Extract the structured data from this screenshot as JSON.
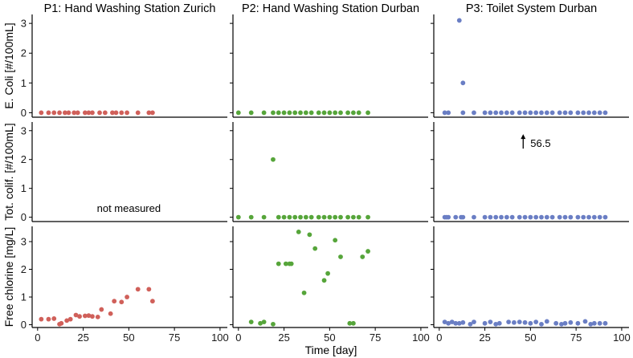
{
  "chart_data": {
    "type": "scatter",
    "columns": [
      {
        "title": "P1: Hand Washing Station Zurich",
        "color": "#d0605a"
      },
      {
        "title": "P2: Hand Washing Station Durban",
        "color": "#56a53a"
      },
      {
        "title": "P3: Toilet System Durban",
        "color": "#6a7ec4"
      }
    ],
    "rows": [
      {
        "ylabel": "E. Coli [#/100mL]",
        "ylim": [
          -0.15,
          3.3
        ],
        "yticks": [
          0,
          1,
          2,
          3
        ]
      },
      {
        "ylabel": "Tot. colif. [#/100mL]",
        "ylim": [
          -0.15,
          3.3
        ],
        "yticks": [
          0,
          1,
          2,
          3
        ]
      },
      {
        "ylabel": "Free chlorine [mg/L]",
        "ylim": [
          -0.1,
          3.55
        ],
        "yticks": [
          0,
          1,
          2,
          3
        ]
      }
    ],
    "xlabel": "Time [day]",
    "xlim": [
      -3,
      104
    ],
    "xticks": [
      0,
      25,
      50,
      75,
      100
    ],
    "panels": [
      {
        "row": 0,
        "col": 0,
        "points": [
          [
            2,
            0
          ],
          [
            6,
            0
          ],
          [
            9,
            0
          ],
          [
            12,
            0
          ],
          [
            15,
            0
          ],
          [
            17,
            0
          ],
          [
            20,
            0
          ],
          [
            22,
            0
          ],
          [
            26,
            0
          ],
          [
            28,
            0
          ],
          [
            30,
            0
          ],
          [
            34,
            0
          ],
          [
            37,
            0
          ],
          [
            41,
            0
          ],
          [
            43,
            0
          ],
          [
            46,
            0
          ],
          [
            49,
            0
          ],
          [
            55,
            0
          ],
          [
            61,
            0
          ],
          [
            63,
            0
          ]
        ]
      },
      {
        "row": 0,
        "col": 1,
        "points": [
          [
            0,
            0
          ],
          [
            7,
            0
          ],
          [
            14,
            0
          ],
          [
            19,
            0
          ],
          [
            22,
            0
          ],
          [
            25,
            0
          ],
          [
            28,
            0
          ],
          [
            31,
            0
          ],
          [
            34,
            0
          ],
          [
            37,
            0
          ],
          [
            40,
            0
          ],
          [
            44,
            0
          ],
          [
            47,
            0
          ],
          [
            50,
            0
          ],
          [
            53,
            0
          ],
          [
            56,
            0
          ],
          [
            60,
            0
          ],
          [
            63,
            0
          ],
          [
            66,
            0
          ],
          [
            71,
            0
          ]
        ]
      },
      {
        "row": 0,
        "col": 2,
        "points": [
          [
            3,
            0
          ],
          [
            5,
            0
          ],
          [
            11,
            3.1
          ],
          [
            13,
            1
          ],
          [
            13,
            0
          ],
          [
            19,
            0
          ],
          [
            25,
            0
          ],
          [
            28,
            0
          ],
          [
            31,
            0
          ],
          [
            34,
            0
          ],
          [
            37,
            0
          ],
          [
            40,
            0
          ],
          [
            44,
            0
          ],
          [
            47,
            0
          ],
          [
            50,
            0
          ],
          [
            53,
            0
          ],
          [
            56,
            0
          ],
          [
            59,
            0
          ],
          [
            62,
            0
          ],
          [
            66,
            0
          ],
          [
            69,
            0
          ],
          [
            72,
            0
          ],
          [
            76,
            0
          ],
          [
            79,
            0
          ],
          [
            82,
            0
          ],
          [
            85,
            0
          ],
          [
            88,
            0
          ],
          [
            91,
            0
          ]
        ]
      },
      {
        "row": 1,
        "col": 0,
        "points": []
      },
      {
        "row": 1,
        "col": 1,
        "points": [
          [
            0,
            0
          ],
          [
            7,
            0
          ],
          [
            14,
            0
          ],
          [
            19,
            2
          ],
          [
            22,
            0
          ],
          [
            25,
            0
          ],
          [
            28,
            0
          ],
          [
            31,
            0
          ],
          [
            34,
            0
          ],
          [
            37,
            0
          ],
          [
            40,
            0
          ],
          [
            44,
            0
          ],
          [
            47,
            0
          ],
          [
            50,
            0
          ],
          [
            53,
            0
          ],
          [
            56,
            0
          ],
          [
            60,
            0
          ],
          [
            63,
            0
          ],
          [
            66,
            0
          ],
          [
            71,
            0
          ]
        ]
      },
      {
        "row": 1,
        "col": 2,
        "points": [
          [
            3,
            0
          ],
          [
            4,
            0
          ],
          [
            5,
            0
          ],
          [
            9,
            0
          ],
          [
            12,
            0
          ],
          [
            13,
            0
          ],
          [
            19,
            0
          ],
          [
            25,
            0
          ],
          [
            28,
            0
          ],
          [
            31,
            0
          ],
          [
            34,
            0
          ],
          [
            37,
            0
          ],
          [
            40,
            0
          ],
          [
            44,
            0
          ],
          [
            47,
            0
          ],
          [
            50,
            0
          ],
          [
            53,
            0
          ],
          [
            56,
            0
          ],
          [
            59,
            0
          ],
          [
            62,
            0
          ],
          [
            66,
            0
          ],
          [
            69,
            0
          ],
          [
            72,
            0
          ],
          [
            76,
            0
          ],
          [
            79,
            0
          ],
          [
            82,
            0
          ],
          [
            85,
            0
          ],
          [
            88,
            0
          ],
          [
            91,
            0
          ]
        ]
      },
      {
        "row": 2,
        "col": 0,
        "points": [
          [
            2,
            0.2
          ],
          [
            6,
            0.2
          ],
          [
            9,
            0.22
          ],
          [
            12,
            0.02
          ],
          [
            13,
            0.05
          ],
          [
            16,
            0.15
          ],
          [
            18,
            0.2
          ],
          [
            21,
            0.35
          ],
          [
            23,
            0.3
          ],
          [
            26,
            0.32
          ],
          [
            28,
            0.33
          ],
          [
            30,
            0.3
          ],
          [
            33,
            0.28
          ],
          [
            35,
            0.55
          ],
          [
            40,
            0.4
          ],
          [
            42,
            0.85
          ],
          [
            46,
            0.82
          ],
          [
            49,
            1
          ],
          [
            55,
            1.28
          ],
          [
            61,
            1.28
          ],
          [
            63,
            0.85
          ]
        ]
      },
      {
        "row": 2,
        "col": 1,
        "points": [
          [
            7,
            0.1
          ],
          [
            12,
            0.05
          ],
          [
            14,
            0.1
          ],
          [
            19,
            0.02
          ],
          [
            22,
            2.2
          ],
          [
            26,
            2.2
          ],
          [
            28,
            2.2
          ],
          [
            29,
            2.2
          ],
          [
            33,
            3.35
          ],
          [
            36,
            1.15
          ],
          [
            39,
            3.25
          ],
          [
            42,
            2.75
          ],
          [
            47,
            1.6
          ],
          [
            49,
            1.85
          ],
          [
            53,
            3.05
          ],
          [
            56,
            2.45
          ],
          [
            61,
            0.05
          ],
          [
            63,
            0.05
          ],
          [
            68,
            2.45
          ],
          [
            71,
            2.65
          ]
        ]
      },
      {
        "row": 2,
        "col": 2,
        "points": [
          [
            3,
            0.1
          ],
          [
            5,
            0.05
          ],
          [
            7,
            0.1
          ],
          [
            9,
            0.05
          ],
          [
            11,
            0.05
          ],
          [
            13,
            0.08
          ],
          [
            17,
            0.02
          ],
          [
            19,
            0.1
          ],
          [
            25,
            0.05
          ],
          [
            28,
            0.1
          ],
          [
            31,
            0.02
          ],
          [
            33,
            0.05
          ],
          [
            38,
            0.1
          ],
          [
            41,
            0.08
          ],
          [
            44,
            0.1
          ],
          [
            47,
            0.08
          ],
          [
            50,
            0.05
          ],
          [
            53,
            0.1
          ],
          [
            56,
            0.02
          ],
          [
            59,
            0.12
          ],
          [
            64,
            0.05
          ],
          [
            67,
            0.02
          ],
          [
            69,
            0.05
          ],
          [
            72,
            0.08
          ],
          [
            76,
            0.05
          ],
          [
            80,
            0.12
          ],
          [
            83,
            0.02
          ],
          [
            85,
            0.05
          ],
          [
            88,
            0.05
          ],
          [
            91,
            0.05
          ]
        ]
      }
    ],
    "annotations": [
      {
        "row": 1,
        "col": 0,
        "text": "not measured",
        "x": 50,
        "y": 0.1
      },
      {
        "row": 1,
        "col": 2,
        "text": "56.5",
        "x": 46,
        "y": 2.6,
        "arrow": true
      }
    ]
  }
}
